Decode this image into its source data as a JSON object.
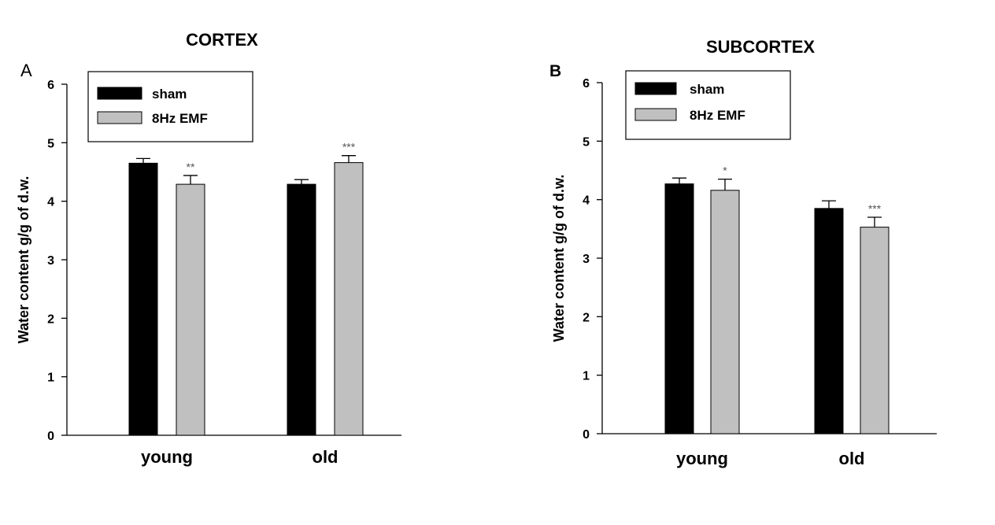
{
  "figure": {
    "colors": {
      "sham": "#000000",
      "emf": "#c0c0c0",
      "axis": "#000000",
      "sig": "#555555"
    }
  },
  "chart_data": [
    {
      "type": "bar",
      "panel": "A",
      "title": "CORTEX",
      "xlabel": "",
      "ylabel": "Water content g/g of d.w.",
      "ylim": [
        0,
        6
      ],
      "yticks": [
        "0",
        "1",
        "2",
        "3",
        "4",
        "5",
        "6"
      ],
      "categories": [
        "young",
        "old"
      ],
      "grid": false,
      "legend_position": "top-left",
      "series": [
        {
          "name": "sham",
          "color": "#000000",
          "values": [
            4.65,
            4.29
          ],
          "errors": [
            0.08,
            0.08
          ],
          "significance": [
            "",
            ""
          ]
        },
        {
          "name": "8Hz EMF",
          "color": "#c0c0c0",
          "values": [
            4.29,
            4.66
          ],
          "errors": [
            0.15,
            0.12
          ],
          "significance": [
            "**",
            "***"
          ]
        }
      ]
    },
    {
      "type": "bar",
      "panel": "B",
      "title": "SUBCORTEX",
      "xlabel": "",
      "ylabel": "Water content g/g of d.w.",
      "ylim": [
        0,
        6
      ],
      "yticks": [
        "0",
        "1",
        "2",
        "3",
        "4",
        "5",
        "6"
      ],
      "categories": [
        "young",
        "old"
      ],
      "grid": false,
      "legend_position": "top-left",
      "series": [
        {
          "name": "sham",
          "color": "#000000",
          "values": [
            4.27,
            3.85
          ],
          "errors": [
            0.1,
            0.13
          ],
          "significance": [
            "",
            ""
          ]
        },
        {
          "name": "8Hz EMF",
          "color": "#c0c0c0",
          "values": [
            4.16,
            3.53
          ],
          "errors": [
            0.19,
            0.17
          ],
          "significance": [
            "*",
            "***"
          ]
        }
      ]
    }
  ]
}
